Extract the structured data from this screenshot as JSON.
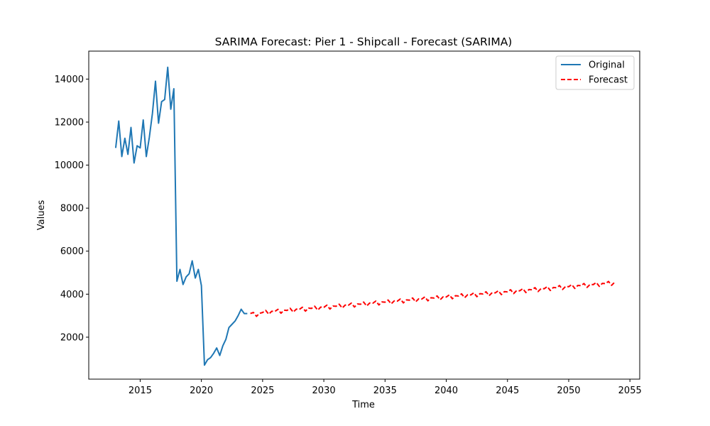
{
  "chart_data": {
    "type": "line",
    "title": "SARIMA Forecast: Pier 1 - Shipcall - Forecast (SARIMA)",
    "xlabel": "Time",
    "ylabel": "Values",
    "xlim": [
      2010.8,
      2055.8
    ],
    "ylim": [
      50,
      15300
    ],
    "x_ticks": [
      2015,
      2020,
      2025,
      2030,
      2035,
      2040,
      2045,
      2050,
      2055
    ],
    "y_ticks": [
      2000,
      4000,
      6000,
      8000,
      10000,
      12000,
      14000
    ],
    "grid": false,
    "legend_position": "top-right",
    "series": [
      {
        "name": "Original",
        "color": "#1f77b4",
        "style": "solid",
        "x": [
          2013.0,
          2013.25,
          2013.5,
          2013.75,
          2014.0,
          2014.25,
          2014.5,
          2014.75,
          2015.0,
          2015.25,
          2015.5,
          2015.75,
          2016.0,
          2016.25,
          2016.5,
          2016.75,
          2017.0,
          2017.25,
          2017.5,
          2017.75,
          2018.0,
          2018.25,
          2018.5,
          2018.75,
          2019.0,
          2019.25,
          2019.5,
          2019.75,
          2020.0,
          2020.25,
          2020.5,
          2020.75,
          2021.0,
          2021.25,
          2021.5,
          2021.75,
          2022.0,
          2022.25,
          2022.5,
          2022.75,
          2023.0,
          2023.25,
          2023.5,
          2023.75
        ],
        "y": [
          10800,
          12050,
          10400,
          11250,
          10500,
          11750,
          10100,
          10900,
          10800,
          12100,
          10400,
          11300,
          12400,
          13900,
          11950,
          12950,
          13050,
          14550,
          12600,
          13550,
          4600,
          5150,
          4450,
          4800,
          4950,
          5550,
          4750,
          5150,
          4400,
          700,
          950,
          1050,
          1250,
          1500,
          1150,
          1600,
          1900,
          2450,
          2600,
          2750,
          3000,
          3300,
          3100,
          3100
        ]
      },
      {
        "name": "Forecast",
        "color": "#ff0000",
        "style": "dashed",
        "x": [
          2024.0,
          2024.25,
          2024.5,
          2024.75,
          2025.0,
          2025.25,
          2025.5,
          2025.75,
          2026.0,
          2026.25,
          2026.5,
          2026.75,
          2027.0,
          2027.25,
          2027.5,
          2027.75,
          2028.0,
          2028.25,
          2028.5,
          2028.75,
          2029.0,
          2029.25,
          2029.5,
          2029.75,
          2030.0,
          2030.25,
          2030.5,
          2030.75,
          2031.0,
          2031.25,
          2031.5,
          2031.75,
          2032.0,
          2032.25,
          2032.5,
          2032.75,
          2033.0,
          2033.25,
          2033.5,
          2033.75,
          2034.0,
          2034.25,
          2034.5,
          2034.75,
          2035.0,
          2035.25,
          2035.5,
          2035.75,
          2036.0,
          2036.25,
          2036.5,
          2036.75,
          2037.0,
          2037.25,
          2037.5,
          2037.75,
          2038.0,
          2038.25,
          2038.5,
          2038.75,
          2039.0,
          2039.25,
          2039.5,
          2039.75,
          2040.0,
          2040.25,
          2040.5,
          2040.75,
          2041.0,
          2041.25,
          2041.5,
          2041.75,
          2042.0,
          2042.25,
          2042.5,
          2042.75,
          2043.0,
          2043.25,
          2043.5,
          2043.75,
          2044.0,
          2044.25,
          2044.5,
          2044.75,
          2045.0,
          2045.25,
          2045.5,
          2045.75,
          2046.0,
          2046.25,
          2046.5,
          2046.75,
          2047.0,
          2047.25,
          2047.5,
          2047.75,
          2048.0,
          2048.25,
          2048.5,
          2048.75,
          2049.0,
          2049.25,
          2049.5,
          2049.75,
          2050.0,
          2050.25,
          2050.5,
          2050.75,
          2051.0,
          2051.25,
          2051.5,
          2051.75,
          2052.0,
          2052.25,
          2052.5,
          2052.75,
          2053.0,
          2053.25,
          2053.5,
          2053.75
        ],
        "y": [
          3100,
          3150,
          2970,
          3110,
          3148,
          3248,
          3068,
          3208,
          3196,
          3296,
          3116,
          3256,
          3244,
          3344,
          3164,
          3304,
          3292,
          3392,
          3212,
          3352,
          3340,
          3440,
          3260,
          3400,
          3388,
          3488,
          3308,
          3448,
          3436,
          3536,
          3356,
          3496,
          3484,
          3584,
          3404,
          3544,
          3532,
          3632,
          3452,
          3592,
          3580,
          3680,
          3500,
          3640,
          3628,
          3728,
          3548,
          3688,
          3676,
          3776,
          3596,
          3736,
          3724,
          3824,
          3644,
          3784,
          3772,
          3872,
          3692,
          3832,
          3820,
          3920,
          3740,
          3880,
          3868,
          3968,
          3788,
          3928,
          3916,
          4016,
          3836,
          3976,
          3964,
          4064,
          3884,
          4024,
          4012,
          4112,
          3932,
          4072,
          4060,
          4160,
          3980,
          4120,
          4108,
          4208,
          4028,
          4168,
          4156,
          4256,
          4076,
          4216,
          4204,
          4304,
          4124,
          4264,
          4252,
          4352,
          4172,
          4312,
          4300,
          4400,
          4220,
          4360,
          4348,
          4448,
          4268,
          4408,
          4396,
          4496,
          4316,
          4456,
          4444,
          4544,
          4364,
          4504,
          4492,
          4592,
          4412,
          4552
        ]
      }
    ]
  }
}
